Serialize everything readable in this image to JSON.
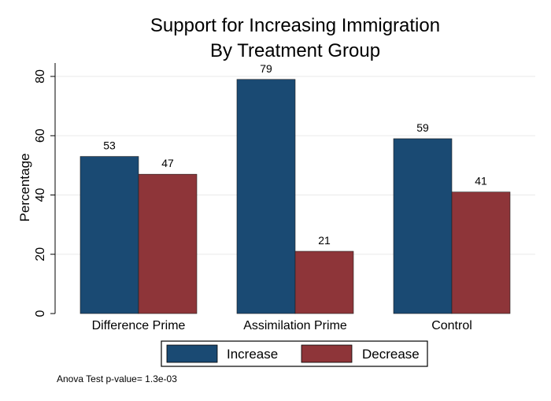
{
  "chart_data": {
    "type": "bar",
    "title": "Support for Increasing Immigration",
    "subtitle": "By Treatment Group",
    "ylabel": "Percentage",
    "xlabel": "",
    "ylim": [
      0,
      85
    ],
    "yticks": [
      0,
      20,
      40,
      60,
      80
    ],
    "grid": true,
    "categories": [
      "Difference Prime",
      "Assimilation Prime",
      "Control"
    ],
    "series": [
      {
        "name": "Increase",
        "color": "#1a4a73",
        "values": [
          53,
          79,
          59
        ]
      },
      {
        "name": "Decrease",
        "color": "#8e3539",
        "values": [
          47,
          21,
          41
        ]
      }
    ],
    "legend_position": "bottom",
    "note": "Anova Test p-value= 1.3e-03"
  }
}
